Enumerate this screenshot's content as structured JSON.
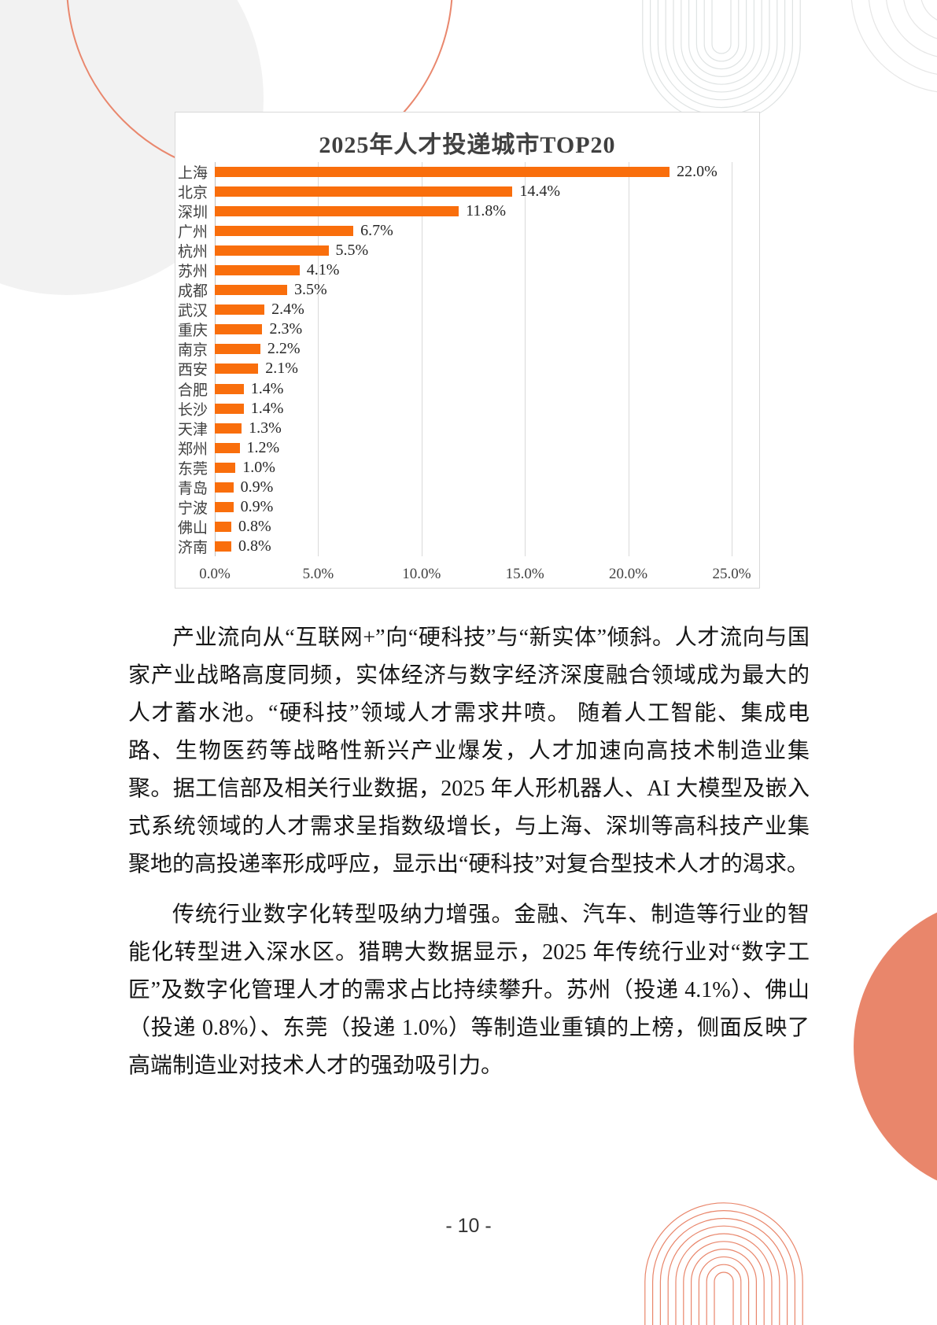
{
  "page": {
    "number_label": "- 10 -"
  },
  "colors": {
    "bar_orange": "#F96E0C",
    "decor_salmon": "#E9866B",
    "decor_gray": "#DFE3E3",
    "grid_gray": "#D9D9D9"
  },
  "chart_data": {
    "type": "bar",
    "orientation": "horizontal",
    "title": "2025年人才投递城市TOP20",
    "categories": [
      "上海",
      "北京",
      "深圳",
      "广州",
      "杭州",
      "苏州",
      "成都",
      "武汉",
      "重庆",
      "南京",
      "西安",
      "合肥",
      "长沙",
      "天津",
      "郑州",
      "东莞",
      "青岛",
      "宁波",
      "佛山",
      "济南"
    ],
    "values": [
      22.0,
      14.4,
      11.8,
      6.7,
      5.5,
      4.1,
      3.5,
      2.4,
      2.3,
      2.2,
      2.1,
      1.4,
      1.4,
      1.3,
      1.2,
      1.0,
      0.9,
      0.9,
      0.8,
      0.8
    ],
    "value_labels": [
      "22.0%",
      "14.4%",
      "11.8%",
      "6.7%",
      "5.5%",
      "4.1%",
      "3.5%",
      "2.4%",
      "2.3%",
      "2.2%",
      "2.1%",
      "1.4%",
      "1.4%",
      "1.3%",
      "1.2%",
      "1.0%",
      "0.9%",
      "0.9%",
      "0.8%",
      "0.8%"
    ],
    "x_ticks": [
      "0.0%",
      "5.0%",
      "10.0%",
      "15.0%",
      "20.0%",
      "25.0%"
    ],
    "xlim": [
      0,
      25
    ],
    "xlabel": "",
    "ylabel": "",
    "grid": true,
    "legend": false,
    "bar_color": "#F96E0C"
  },
  "paragraphs": [
    {
      "text": "产业流向从“互联网+”向“硬科技”与“新实体”倾斜。人才流向与国家产业战略高度同频，实体经济与数字经济深度融合领域成为最大的人才蓄水池。“硬科技”领域人才需求井喷。 随着人工智能、集成电路、生物医药等战略性新兴产业爆发，人才加速向高技术制造业集聚。据工信部及相关行业数据，2025 年人形机器人、AI 大模型及嵌入式系统领域的人才需求呈指数级增长，与上海、深圳等高科技产业集聚地的高投递率形成呼应，显示出“硬科技”对复合型技术人才的渴求。"
    },
    {
      "text": "传统行业数字化转型吸纳力增强。金融、汽车、制造等行业的智能化转型进入深水区。猎聘大数据显示，2025 年传统行业对“数字工匠”及数字化管理人才的需求占比持续攀升。苏州（投递 4.1%）、佛山（投递 0.8%）、东莞（投递 1.0%）等制造业重镇的上榜，侧面反映了高端制造业对技术人才的强劲吸引力。"
    }
  ]
}
